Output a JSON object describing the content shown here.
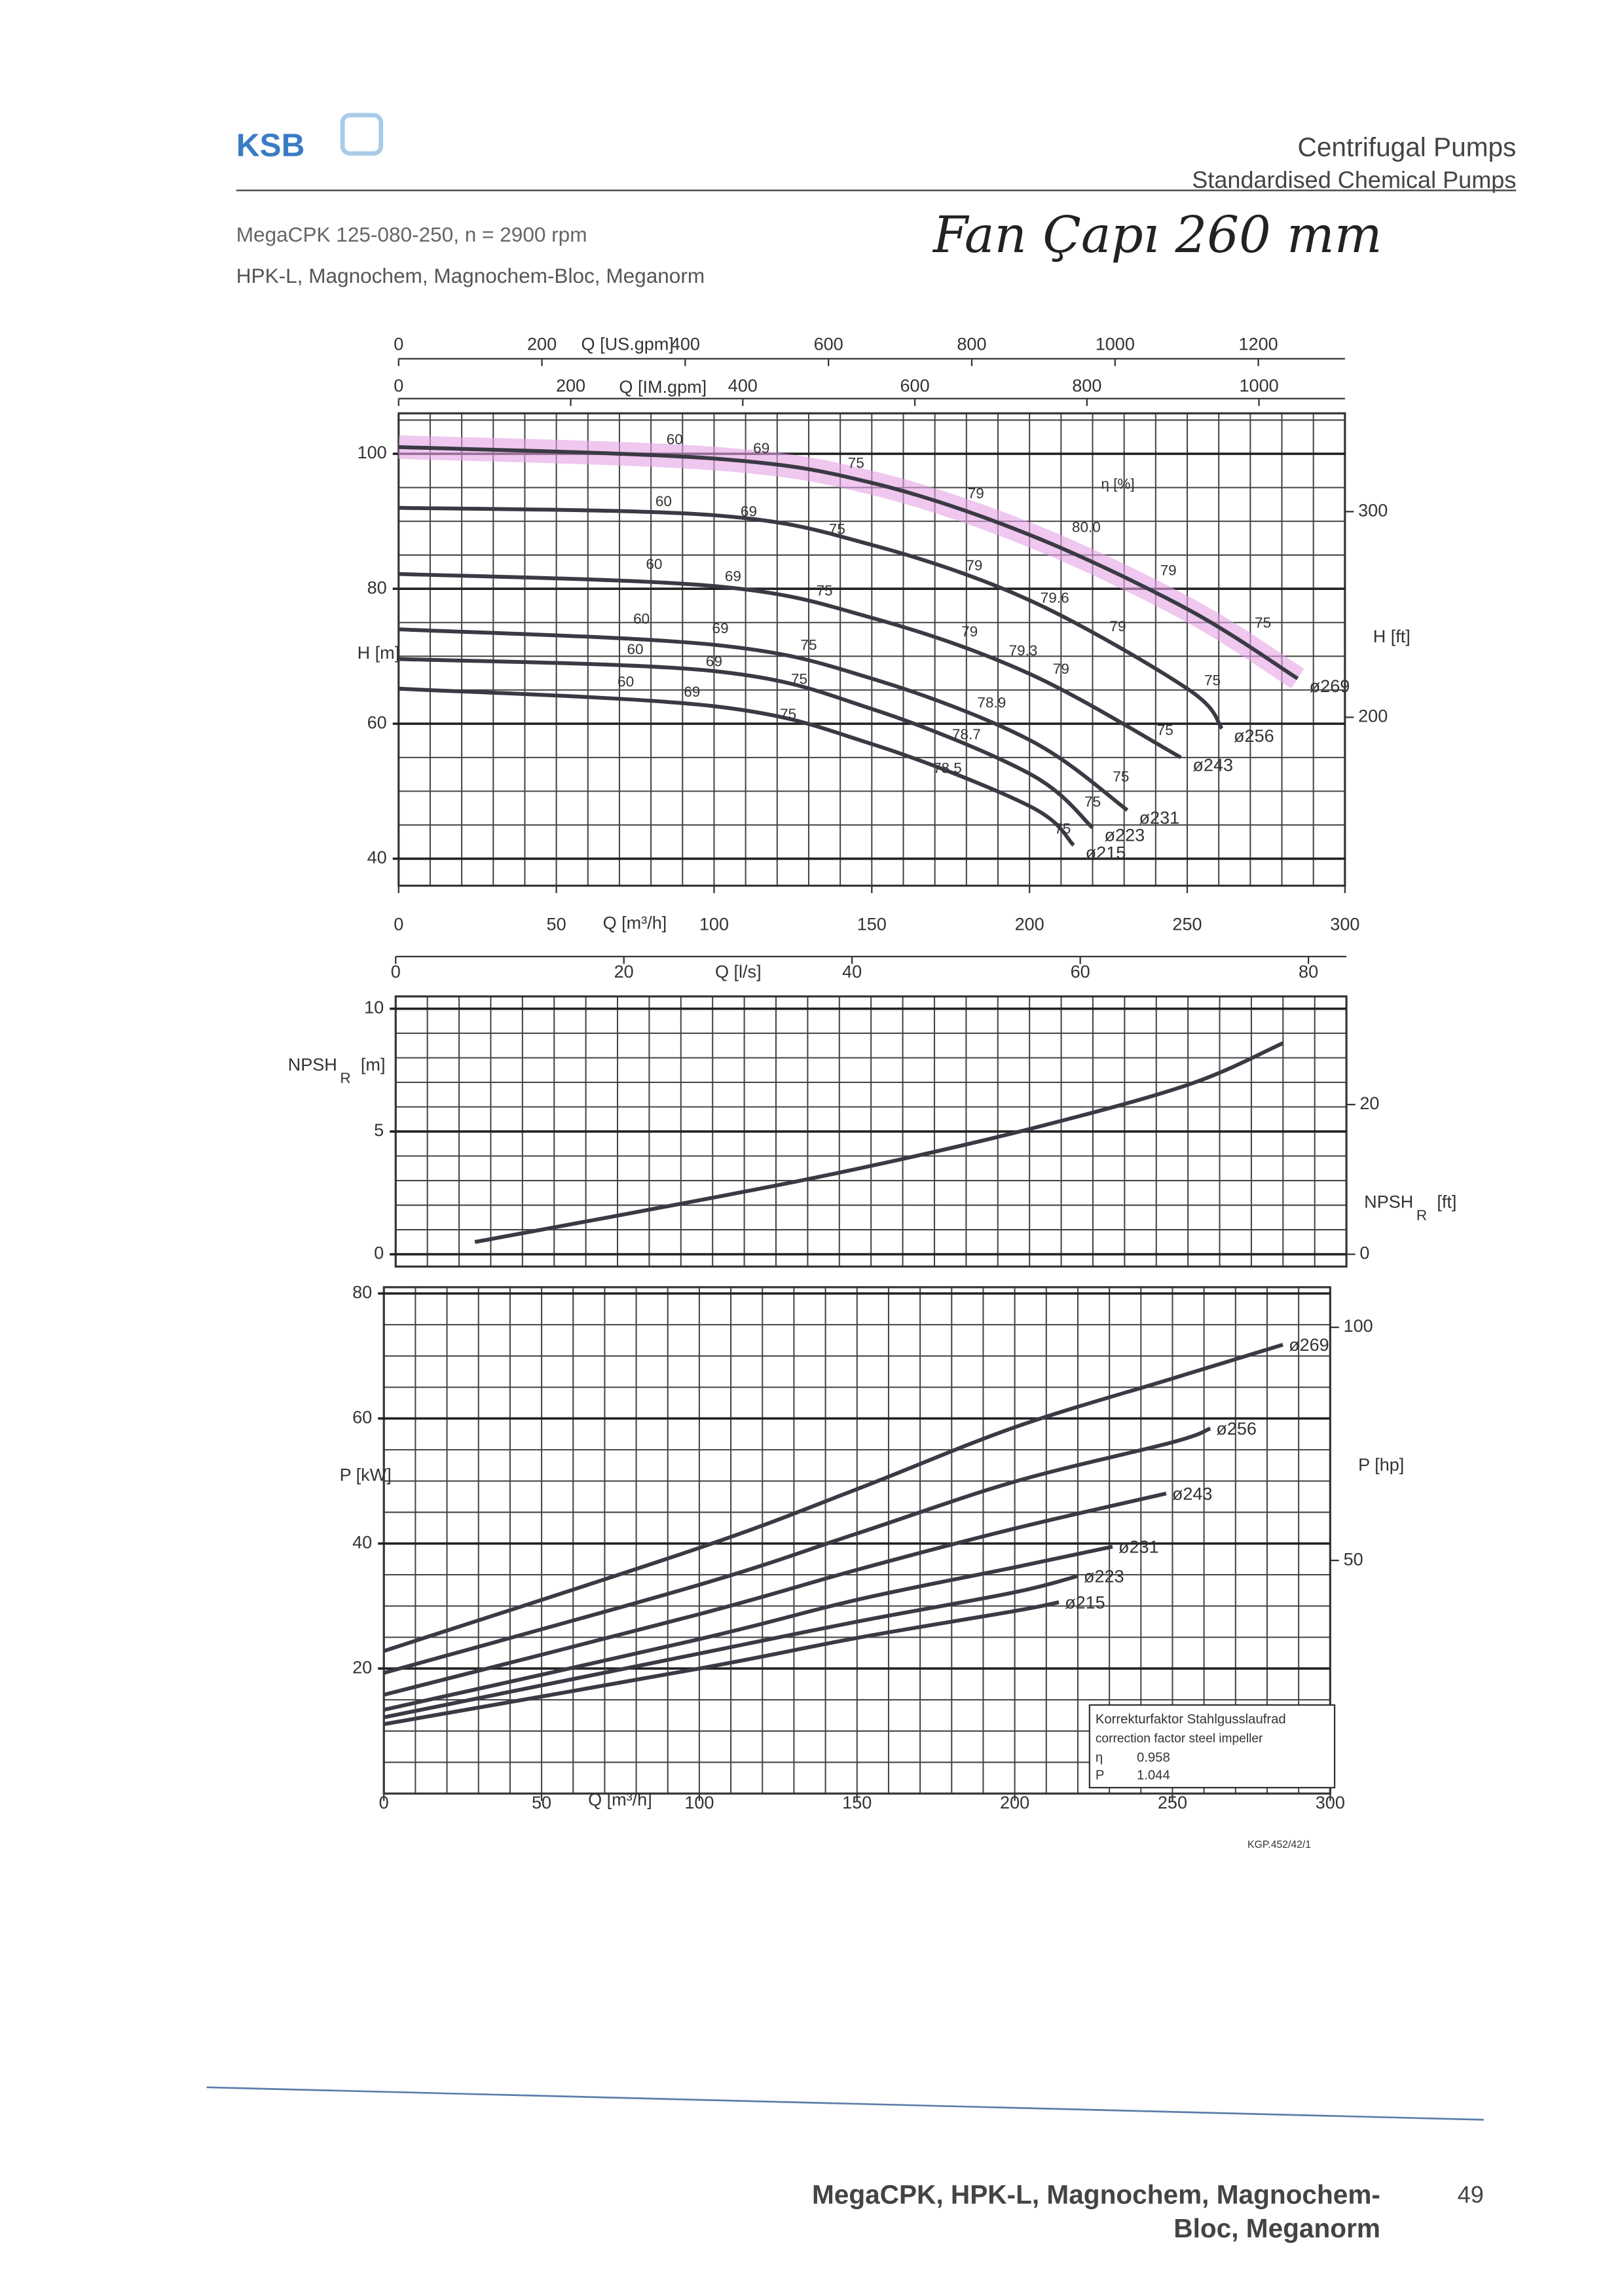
{
  "document": {
    "logo": "KSB",
    "title": "Centrifugal Pumps",
    "subtitle": "Standardised Chemical Pumps",
    "model": "MegaCPK 125-080-250, n = 2900 rpm",
    "variants": "HPK-L, Magnochem, Magnochem-Bloc, Meganorm",
    "handwritten": "Fan Çapı 260 mm",
    "code": "KGP.452/42/1",
    "footer_lines": [
      "MegaCPK, HPK-L, Magnochem, Magnochem-",
      "Bloc, Meganorm"
    ],
    "page": 49
  },
  "chart_data": [
    {
      "type": "line",
      "x_label": "Q [m³/h]",
      "y_label": "H [m]",
      "y2_label": "H [ft]",
      "x2_label": "Q [US.gpm]",
      "x3_label": "Q [IM.gpm]",
      "xlim": [
        0,
        300
      ],
      "xticks": [
        0,
        50,
        100,
        150,
        200,
        250,
        300
      ],
      "x2lim": [
        0,
        1320.9
      ],
      "x2ticks": [
        0,
        200,
        400,
        600,
        800,
        1000,
        1200
      ],
      "x3lim": [
        0,
        1099.9
      ],
      "x3ticks": [
        0,
        200,
        400,
        600,
        800,
        1000
      ],
      "ylim": [
        36,
        106
      ],
      "yticks": [
        40,
        60,
        80,
        100
      ],
      "y2lim": [
        118.1,
        347.8
      ],
      "y2ticks": [
        200,
        300
      ],
      "grid": true,
      "grid_step_x": 10,
      "grid_step_y": 5,
      "series": [
        {
          "name": "ø269",
          "color": "#3a3a44",
          "highlight": "#e4a2e4",
          "x": [
            0,
            100,
            150,
            200,
            250,
            285
          ],
          "values": [
            101,
            99.3,
            95.7,
            88,
            77,
            66.7
          ]
        },
        {
          "name": "ø256",
          "color": "#3a3a44",
          "x": [
            0,
            100,
            150,
            200,
            250,
            261
          ],
          "values": [
            92,
            90.9,
            86.5,
            78.3,
            65.2,
            59.3
          ]
        },
        {
          "name": "ø243",
          "color": "#3a3a44",
          "x": [
            0,
            100,
            150,
            200,
            248
          ],
          "values": [
            82.2,
            80.4,
            75.7,
            67.4,
            55
          ]
        },
        {
          "name": "ø231",
          "color": "#3a3a44",
          "x": [
            0,
            100,
            150,
            200,
            231
          ],
          "values": [
            74,
            71.7,
            66.7,
            57.6,
            47.2
          ]
        },
        {
          "name": "ø223",
          "color": "#3a3a44",
          "x": [
            0,
            100,
            150,
            200,
            220
          ],
          "values": [
            69.6,
            67.8,
            62.2,
            52.6,
            44.6
          ]
        },
        {
          "name": "ø215",
          "color": "#3a3a44",
          "x": [
            0,
            100,
            150,
            200,
            214
          ],
          "values": [
            65.2,
            62.6,
            57,
            47.8,
            42
          ]
        }
      ],
      "annotations": [
        {
          "text": "60",
          "x": 87.5,
          "y": 102
        },
        {
          "text": "69",
          "x": 115,
          "y": 100.7
        },
        {
          "text": "75",
          "x": 145,
          "y": 98.5
        },
        {
          "text": "79",
          "x": 183,
          "y": 94
        },
        {
          "text": "η [%]",
          "x": 228,
          "y": 95.4
        },
        {
          "text": "60",
          "x": 84,
          "y": 92.8
        },
        {
          "text": "69",
          "x": 111,
          "y": 91.3
        },
        {
          "text": "75",
          "x": 139,
          "y": 88.7
        },
        {
          "text": "80.0",
          "x": 218,
          "y": 89
        },
        {
          "text": "60",
          "x": 81,
          "y": 83.5
        },
        {
          "text": "69",
          "x": 106,
          "y": 81.7
        },
        {
          "text": "75",
          "x": 135,
          "y": 79.6
        },
        {
          "text": "79",
          "x": 182.5,
          "y": 83.3
        },
        {
          "text": "79.6",
          "x": 208,
          "y": 78.5
        },
        {
          "text": "79",
          "x": 244,
          "y": 82.6
        },
        {
          "text": "60",
          "x": 77,
          "y": 75.4
        },
        {
          "text": "69",
          "x": 102,
          "y": 74
        },
        {
          "text": "75",
          "x": 130,
          "y": 71.5
        },
        {
          "text": "79",
          "x": 181,
          "y": 73.5
        },
        {
          "text": "79.3",
          "x": 198,
          "y": 70.7
        },
        {
          "text": "79",
          "x": 228,
          "y": 74.3
        },
        {
          "text": "75",
          "x": 274,
          "y": 74.8
        },
        {
          "text": "60",
          "x": 75,
          "y": 70.9
        },
        {
          "text": "69",
          "x": 100,
          "y": 69.1
        },
        {
          "text": "75",
          "x": 127,
          "y": 66.5
        },
        {
          "text": "79",
          "x": 210,
          "y": 68
        },
        {
          "text": "75",
          "x": 258,
          "y": 66.3
        },
        {
          "text": "60",
          "x": 72,
          "y": 66.1
        },
        {
          "text": "69",
          "x": 93,
          "y": 64.6
        },
        {
          "text": "75",
          "x": 123.5,
          "y": 61.3
        },
        {
          "text": "78.9",
          "x": 188,
          "y": 63
        },
        {
          "text": "75",
          "x": 243,
          "y": 58.9
        },
        {
          "text": "78.7",
          "x": 180,
          "y": 58.3
        },
        {
          "text": "78.5",
          "x": 174,
          "y": 53.3
        },
        {
          "text": "75",
          "x": 229,
          "y": 52
        },
        {
          "text": "75",
          "x": 220,
          "y": 48.3
        },
        {
          "text": "75",
          "x": 210.5,
          "y": 44.3
        }
      ]
    },
    {
      "type": "line",
      "y_label": "NPSH",
      "y_label_sub": "R",
      "y_label_unit": "[m]",
      "y2_label": "NPSH",
      "y2_label_sub": "R",
      "y2_label_unit": "[ft]",
      "x2_label": "Q [l/s]",
      "xlim": [
        0,
        300
      ],
      "x2lim": [
        0,
        83.33
      ],
      "x2ticks": [
        0,
        20,
        40,
        60,
        80
      ],
      "ylim": [
        -0.5,
        10.5
      ],
      "yticks": [
        0,
        5,
        10
      ],
      "y2lim": [
        -1.64,
        34.45
      ],
      "y2ticks": [
        0,
        20
      ],
      "grid": true,
      "grid_step_x": 10,
      "grid_step_y": 1,
      "series": [
        {
          "color": "#3a3a44",
          "x": [
            25,
            100,
            150,
            200,
            250,
            280
          ],
          "values": [
            0.5,
            2.3,
            3.6,
            5.1,
            6.9,
            8.6
          ]
        }
      ]
    },
    {
      "type": "line",
      "x_label": "Q [m³/h]",
      "y_label": "P [kW]",
      "y2_label": "P [hp]",
      "xlim": [
        0,
        300
      ],
      "xticks": [
        0,
        50,
        100,
        150,
        200,
        250,
        300
      ],
      "ylim": [
        0,
        81
      ],
      "yticks": [
        20,
        40,
        60,
        80
      ],
      "y2lim": [
        0,
        108.6
      ],
      "y2ticks": [
        50,
        100
      ],
      "grid": true,
      "grid_step_x": 10,
      "grid_step_y": 5,
      "series": [
        {
          "name": "ø269",
          "color": "#3a3a44",
          "x": [
            0,
            100,
            150,
            200,
            250,
            285
          ],
          "values": [
            22.8,
            39.3,
            48.7,
            58.6,
            66.4,
            71.8
          ]
        },
        {
          "name": "ø256",
          "color": "#3a3a44",
          "x": [
            0,
            100,
            150,
            200,
            250,
            262
          ],
          "values": [
            19.3,
            33.4,
            41.6,
            49.9,
            56.2,
            58.4
          ]
        },
        {
          "name": "ø243",
          "color": "#3a3a44",
          "x": [
            0,
            100,
            150,
            200,
            248
          ],
          "values": [
            15.8,
            28.7,
            35.8,
            42.4,
            48
          ]
        },
        {
          "name": "ø231",
          "color": "#3a3a44",
          "x": [
            0,
            100,
            150,
            200,
            231
          ],
          "values": [
            13.4,
            24.7,
            31,
            36.2,
            39.5
          ]
        },
        {
          "name": "ø223",
          "color": "#3a3a44",
          "x": [
            0,
            100,
            150,
            200,
            220
          ],
          "values": [
            12.2,
            22.4,
            27.5,
            32.2,
            34.8
          ]
        },
        {
          "name": "ø215",
          "color": "#3a3a44",
          "x": [
            0,
            100,
            150,
            200,
            214
          ],
          "values": [
            11.1,
            20,
            24.9,
            29.2,
            30.6
          ]
        }
      ],
      "correction": {
        "title": "Korrekturfaktor Stahlgusslaufrad",
        "subtitle": "correction factor steel impeller",
        "rows": [
          {
            "symbol": "η",
            "value": 0.958
          },
          {
            "symbol": "P",
            "value": 1.044
          }
        ]
      }
    }
  ]
}
